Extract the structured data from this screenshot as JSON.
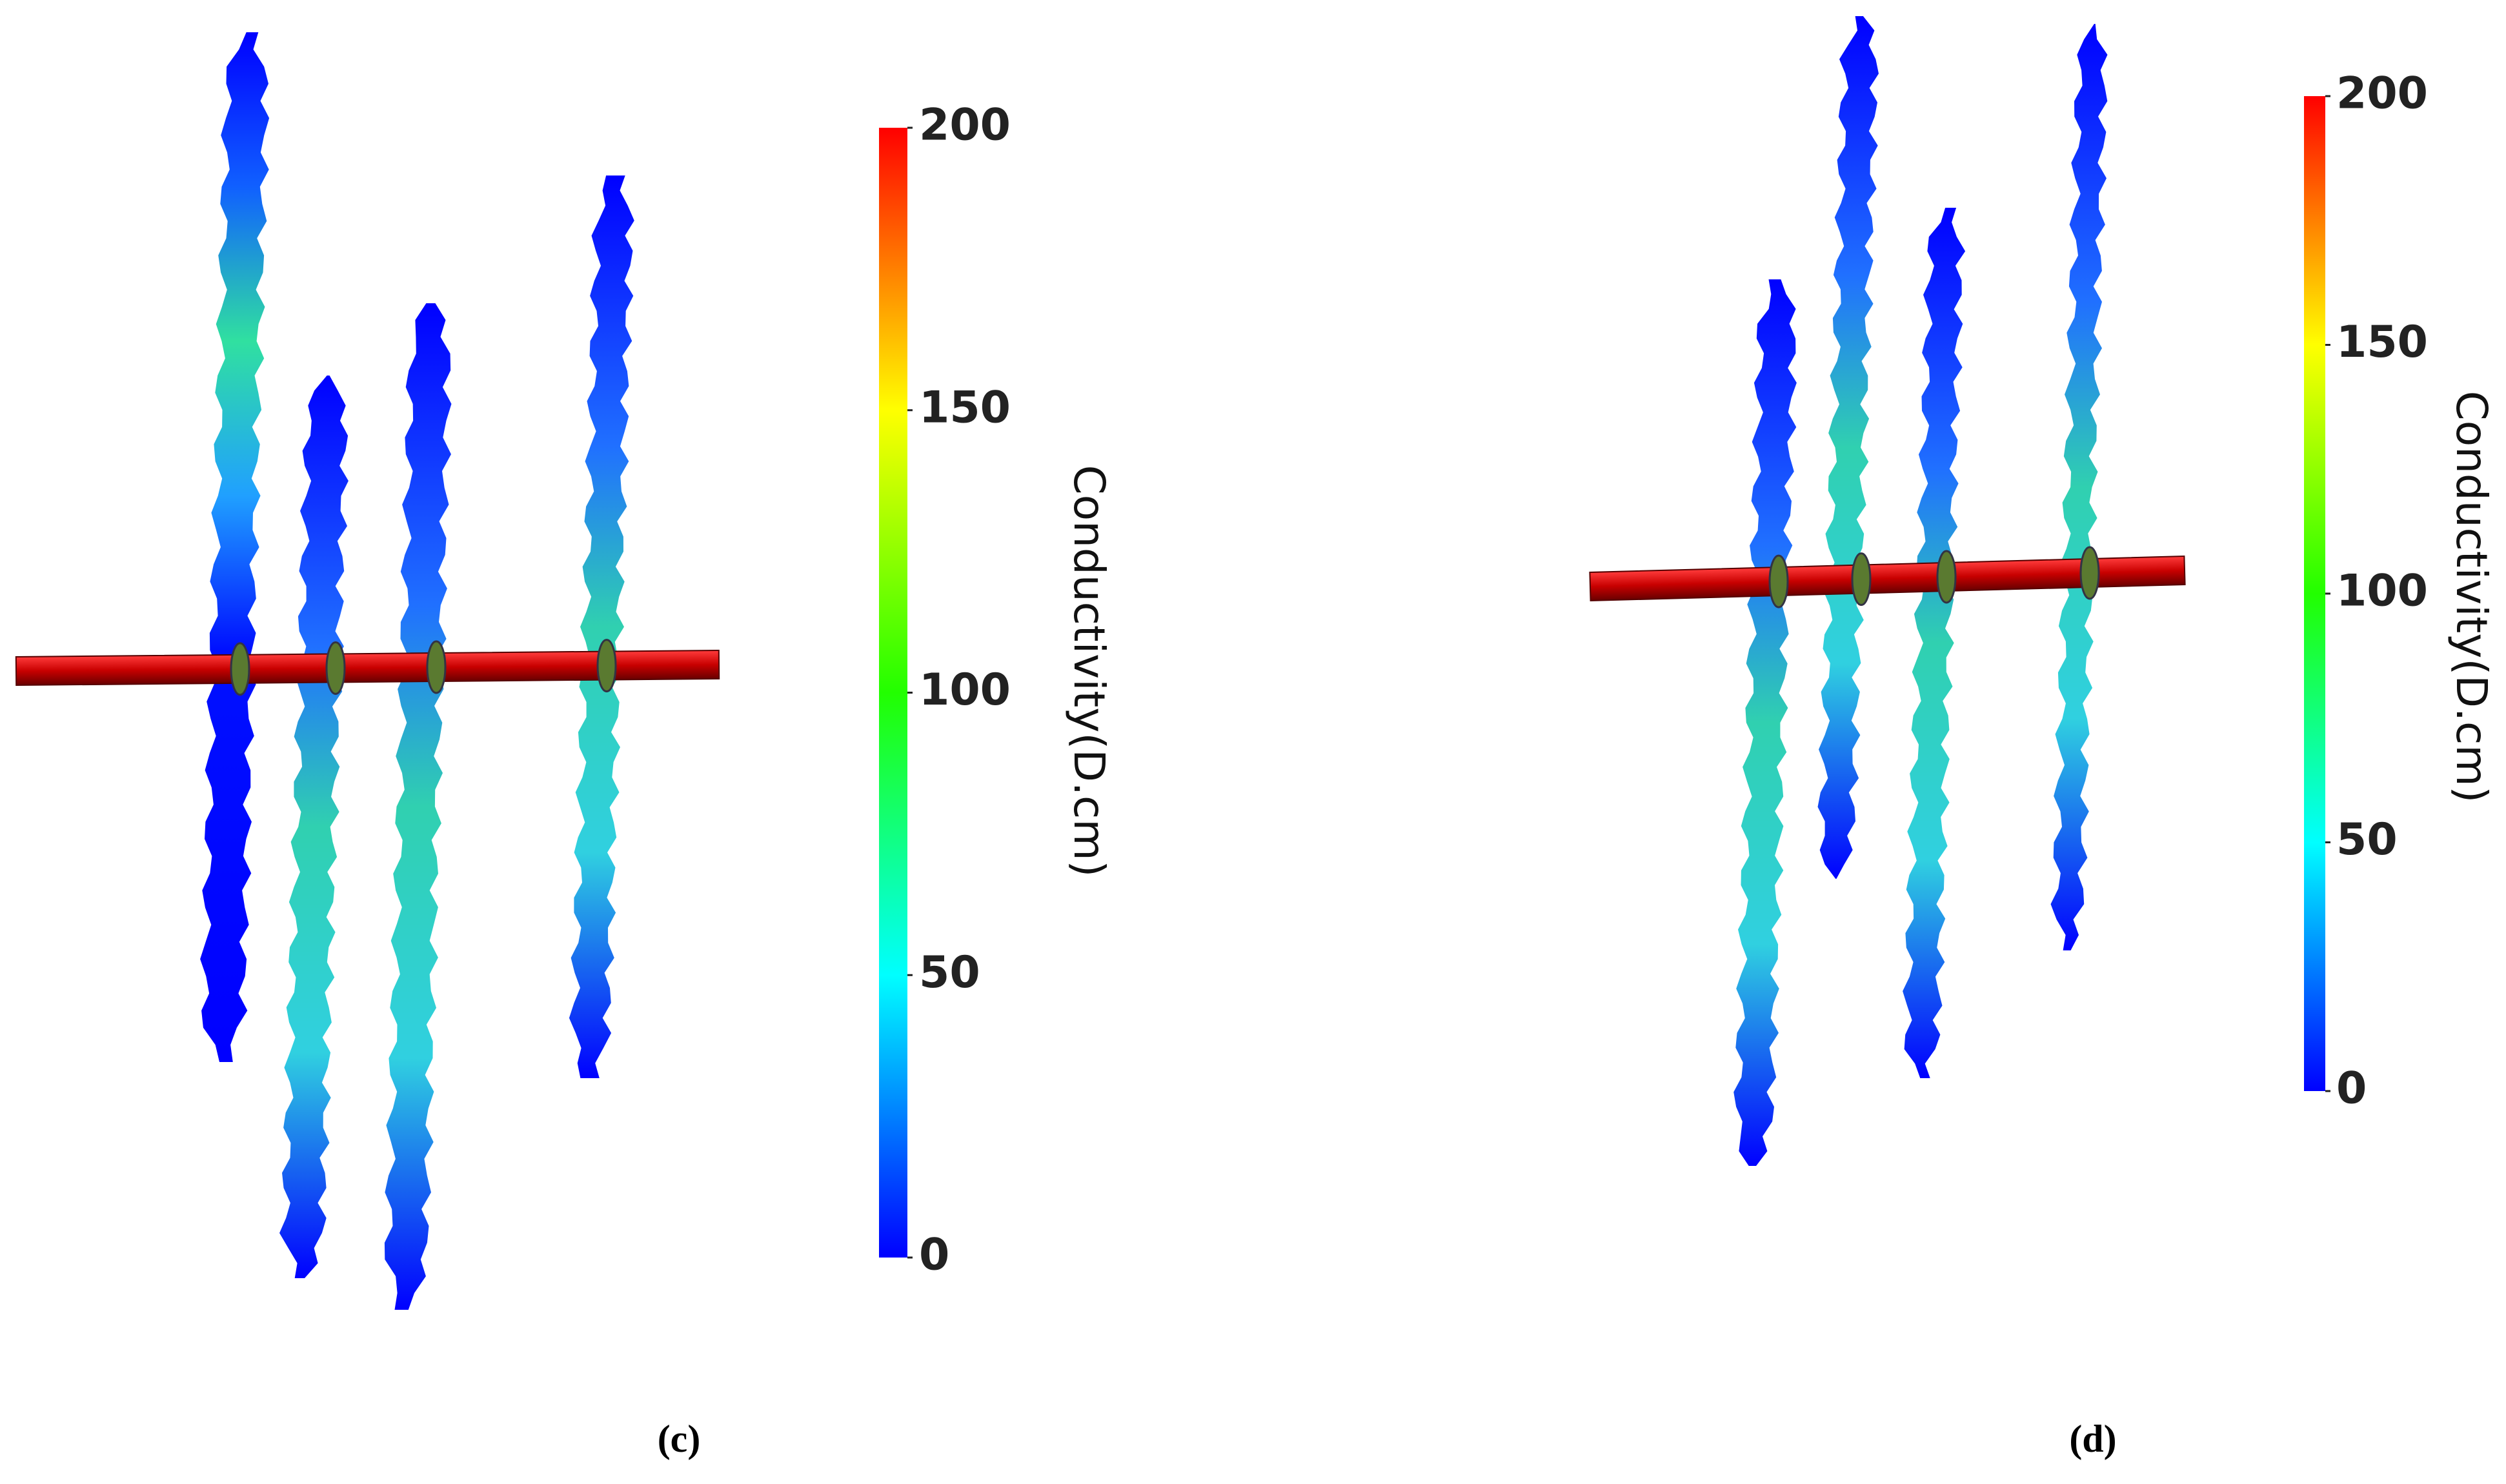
{
  "panels": [
    {
      "caption": "(c)",
      "colorbar": {
        "title": "Conductivity(D.cm)",
        "lim": [
          0,
          200
        ],
        "ticks": [
          0,
          50,
          100,
          150,
          200
        ]
      }
    },
    {
      "caption": "(d)",
      "colorbar": {
        "title": "Conductivity(D.cm)",
        "lim": [
          0,
          200
        ],
        "ticks": [
          0,
          50,
          100,
          150,
          200
        ]
      }
    }
  ]
}
